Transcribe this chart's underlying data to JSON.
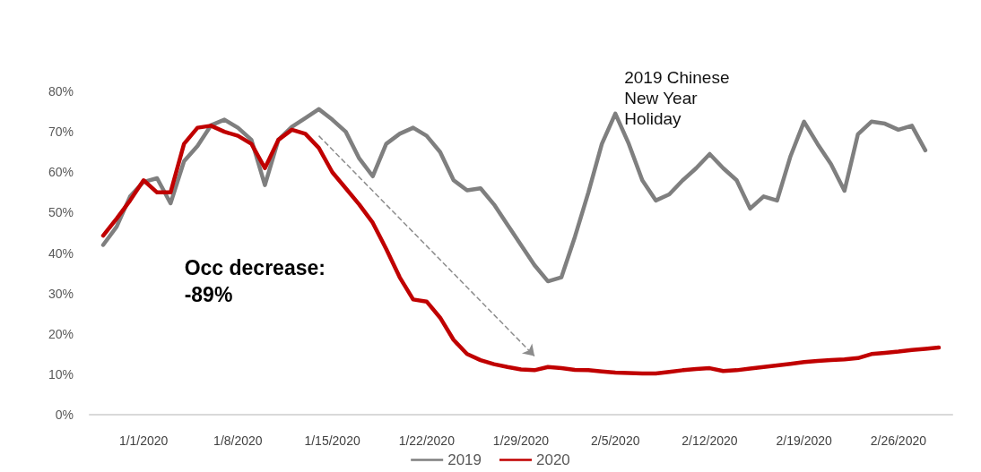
{
  "chart_data": {
    "type": "line",
    "xlim": [
      "2019-12-28",
      "2020-03-01"
    ],
    "xticks": [
      {
        "value": "2020-01-01",
        "label": "1/1/2020"
      },
      {
        "value": "2020-01-08",
        "label": "1/8/2020"
      },
      {
        "value": "2020-01-15",
        "label": "1/15/2020"
      },
      {
        "value": "2020-01-22",
        "label": "1/22/2020"
      },
      {
        "value": "2020-01-29",
        "label": "1/29/2020"
      },
      {
        "value": "2020-02-05",
        "label": "2/5/2020"
      },
      {
        "value": "2020-02-12",
        "label": "2/12/2020"
      },
      {
        "value": "2020-02-19",
        "label": "2/19/2020"
      },
      {
        "value": "2020-02-26",
        "label": "2/26/2020"
      }
    ],
    "ylim": [
      0,
      80
    ],
    "yticks": [
      {
        "value": 0,
        "label": "0%"
      },
      {
        "value": 10,
        "label": "10%"
      },
      {
        "value": 20,
        "label": "20%"
      },
      {
        "value": 30,
        "label": "30%"
      },
      {
        "value": 40,
        "label": "40%"
      },
      {
        "value": 50,
        "label": "50%"
      },
      {
        "value": 60,
        "label": "60%"
      },
      {
        "value": 70,
        "label": "70%"
      },
      {
        "value": 80,
        "label": "80%"
      }
    ],
    "grid": false,
    "legend": "bottom",
    "marker": "none",
    "line_style": "solid",
    "annotations": [
      {
        "text": "2019 Chinese New Year Holiday",
        "x": "2020-02-05",
        "y": 75
      },
      "Occ decrease: -89%"
    ],
    "series": [
      {
        "name": "2019",
        "color": "#7f7f7f",
        "x": [
          "2019-12-29",
          "2019-12-30",
          "2019-12-31",
          "2020-01-01",
          "2020-01-02",
          "2020-01-03",
          "2020-01-04",
          "2020-01-05",
          "2020-01-06",
          "2020-01-07",
          "2020-01-08",
          "2020-01-09",
          "2020-01-10",
          "2020-01-11",
          "2020-01-12",
          "2020-01-13",
          "2020-01-14",
          "2020-01-15",
          "2020-01-16",
          "2020-01-17",
          "2020-01-18",
          "2020-01-19",
          "2020-01-20",
          "2020-01-21",
          "2020-01-22",
          "2020-01-23",
          "2020-01-24",
          "2020-01-25",
          "2020-01-26",
          "2020-01-27",
          "2020-01-28",
          "2020-01-29",
          "2020-01-30",
          "2020-01-31",
          "2020-02-01",
          "2020-02-02",
          "2020-02-03",
          "2020-02-04",
          "2020-02-05",
          "2020-02-06",
          "2020-02-07",
          "2020-02-08",
          "2020-02-09",
          "2020-02-10",
          "2020-02-11",
          "2020-02-12",
          "2020-02-13",
          "2020-02-14",
          "2020-02-15",
          "2020-02-16",
          "2020-02-17",
          "2020-02-18",
          "2020-02-19",
          "2020-02-20",
          "2020-02-21",
          "2020-02-22",
          "2020-02-23",
          "2020-02-24",
          "2020-02-25",
          "2020-02-26",
          "2020-02-27",
          "2020-02-28"
        ],
        "values": [
          42,
          46.5,
          54,
          57.6,
          58.5,
          52.3,
          62.7,
          66.5,
          71.6,
          73,
          71,
          68,
          56.8,
          68,
          71.2,
          73.4,
          75.6,
          73,
          70,
          63.4,
          59,
          67,
          69.5,
          71,
          69,
          65,
          58,
          55.5,
          56,
          52,
          47,
          42,
          37,
          33,
          34,
          44,
          55,
          67,
          74.5,
          67,
          58,
          53,
          54.5,
          58,
          61,
          64.5,
          61,
          58,
          51,
          54,
          53,
          64,
          72.5,
          67,
          62,
          55.4,
          69.4,
          72.5,
          72,
          70.5,
          71.5,
          65.4
        ]
      },
      {
        "name": "2020",
        "color": "#c00000",
        "x": [
          "2019-12-29",
          "2019-12-30",
          "2019-12-31",
          "2020-01-01",
          "2020-01-02",
          "2020-01-03",
          "2020-01-04",
          "2020-01-05",
          "2020-01-06",
          "2020-01-07",
          "2020-01-08",
          "2020-01-09",
          "2020-01-10",
          "2020-01-11",
          "2020-01-12",
          "2020-01-13",
          "2020-01-14",
          "2020-01-15",
          "2020-01-16",
          "2020-01-17",
          "2020-01-18",
          "2020-01-19",
          "2020-01-20",
          "2020-01-21",
          "2020-01-22",
          "2020-01-23",
          "2020-01-24",
          "2020-01-25",
          "2020-01-26",
          "2020-01-27",
          "2020-01-28",
          "2020-01-29",
          "2020-01-30",
          "2020-01-31",
          "2020-02-01",
          "2020-02-02",
          "2020-02-03",
          "2020-02-04",
          "2020-02-05",
          "2020-02-06",
          "2020-02-07",
          "2020-02-08",
          "2020-02-09",
          "2020-02-10",
          "2020-02-11",
          "2020-02-12",
          "2020-02-13",
          "2020-02-14",
          "2020-02-15",
          "2020-02-16",
          "2020-02-17",
          "2020-02-18",
          "2020-02-19",
          "2020-02-20",
          "2020-02-21",
          "2020-02-22",
          "2020-02-23",
          "2020-02-24",
          "2020-02-25",
          "2020-02-26",
          "2020-02-27",
          "2020-02-28",
          "2020-02-29"
        ],
        "values": [
          44.3,
          48.5,
          53,
          58,
          55,
          55,
          67,
          71,
          71.5,
          70,
          69,
          67,
          61,
          68,
          70.5,
          69.5,
          66,
          60,
          56,
          52,
          47.5,
          41,
          34,
          28.5,
          28,
          24,
          18.5,
          15,
          13.5,
          12.5,
          11.8,
          11.2,
          11,
          11.8,
          11.5,
          11.1,
          11,
          10.7,
          10.4,
          10.3,
          10.2,
          10.2,
          10.6,
          11,
          11.3,
          11.5,
          10.8,
          11,
          11.4,
          11.8,
          12.2,
          12.6,
          13,
          13.3,
          13.5,
          13.7,
          14,
          15,
          15.3,
          15.6,
          16,
          16.3,
          16.6
        ]
      }
    ]
  }
}
